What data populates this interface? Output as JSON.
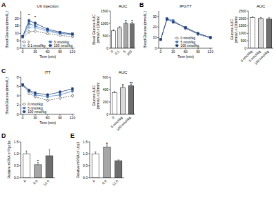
{
  "chart_data": [
    {
      "type": "line",
      "panel": "A",
      "title": "UII injection",
      "xlabel": "Time (min)",
      "ylabel": "Blood Glucose (mmol/L)",
      "x": [
        0,
        15,
        30,
        60,
        90,
        120
      ],
      "xlim": [
        -5,
        125
      ],
      "xticks": [
        0,
        30,
        60,
        90,
        120
      ],
      "ylim": [
        0,
        25
      ],
      "yticks": [
        0,
        5,
        10,
        15,
        20
      ],
      "legend": "lower left",
      "series": [
        {
          "name": "0",
          "color": "#555555",
          "marker": "open_circle",
          "line_style": "dashed",
          "values": [
            7.2,
            11.0,
            11.5,
            9.8,
            8.6,
            7.8
          ],
          "errors": [
            0.4,
            0.8,
            0.8,
            0.6,
            0.5,
            0.4
          ]
        },
        {
          "name": "0.1 nmol/kg",
          "color": "#8fb4dc",
          "marker": "circle",
          "line_style": "solid",
          "values": [
            7.5,
            14.0,
            13.8,
            11.2,
            9.8,
            8.8
          ],
          "errors": [
            0.4,
            0.9,
            0.9,
            0.7,
            0.6,
            0.5
          ]
        },
        {
          "name": "5 nmol/kg",
          "color": "#4a78b5",
          "marker": "square",
          "line_style": "solid",
          "values": [
            7.8,
            16.5,
            15.0,
            12.0,
            10.2,
            9.2
          ],
          "errors": [
            0.4,
            1.0,
            0.9,
            0.7,
            0.6,
            0.5
          ]
        },
        {
          "name": "100 nmol/kg",
          "color": "#1f3f78",
          "marker": "square",
          "line_style": "solid",
          "values": [
            8.0,
            18.5,
            16.8,
            12.8,
            10.8,
            9.6
          ],
          "errors": [
            0.4,
            1.0,
            1.0,
            0.8,
            0.6,
            0.5
          ]
        }
      ],
      "annotations": [
        {
          "x": 15,
          "y": 21.5,
          "text": "*"
        },
        {
          "x": 30,
          "y": 20,
          "text": "*"
        }
      ]
    },
    {
      "type": "bar",
      "title": "AUC",
      "ylabel": "Blood Glucose AUC (mmol/L×120min)",
      "categories": [
        "0",
        "0.1",
        "5",
        "100"
      ],
      "values": [
        700,
        820,
        1000,
        980
      ],
      "errors": [
        40,
        50,
        50,
        60
      ],
      "colors": [
        "#ffffff",
        "#d9d9d9",
        "#a6a6a6",
        "#6e6e6e"
      ],
      "significance": [
        null,
        null,
        "*",
        "*"
      ],
      "ylim": [
        0,
        1500
      ],
      "yticks": [
        0,
        500,
        1000,
        1500
      ]
    },
    {
      "type": "line",
      "panel": "B",
      "title": "IPGTT",
      "xlabel": "Time (min)",
      "ylabel": "Blood Glucose (mmol/L)",
      "x": [
        0,
        15,
        30,
        60,
        90,
        120
      ],
      "xlim": [
        -5,
        125
      ],
      "xticks": [
        0,
        30,
        60,
        90,
        120
      ],
      "ylim": [
        0,
        35
      ],
      "yticks": [
        0,
        10,
        20,
        30
      ],
      "legend": "lower center",
      "series": [
        {
          "name": "0 nmol/kg",
          "color": "#555555",
          "marker": "open_circle",
          "line_style": "dashed",
          "values": [
            8.2,
            27.0,
            25.5,
            18.5,
            13.0,
            9.5
          ],
          "errors": [
            0.5,
            1.0,
            1.0,
            0.9,
            0.8,
            0.6
          ]
        },
        {
          "name": "5 nmol/kg",
          "color": "#4a78b5",
          "marker": "square",
          "line_style": "solid",
          "values": [
            8.0,
            28.0,
            26.0,
            19.0,
            13.5,
            9.8
          ],
          "errors": [
            0.5,
            1.0,
            1.0,
            0.9,
            0.8,
            0.6
          ]
        },
        {
          "name": "100 nmol/kg",
          "color": "#1f3f78",
          "marker": "square",
          "line_style": "solid",
          "values": [
            8.4,
            27.5,
            24.5,
            19.5,
            14.0,
            10.2
          ],
          "errors": [
            0.5,
            1.0,
            1.0,
            0.9,
            0.8,
            0.6
          ]
        }
      ]
    },
    {
      "type": "bar",
      "title": "AUC",
      "ylabel": "Glucose AUC (mmol/L×120min)",
      "categories": [
        "0 nmol/kg",
        "5 nmol/kg",
        "100 nmol/kg"
      ],
      "values": [
        2050,
        2000,
        1960
      ],
      "errors": [
        80,
        70,
        90
      ],
      "colors": [
        "#ffffff",
        "#d9d9d9",
        "#6e6e6e"
      ],
      "ylim": [
        0,
        2500
      ],
      "yticks": [
        0,
        500,
        1000,
        1500,
        2000,
        2500
      ]
    },
    {
      "type": "line",
      "panel": "C",
      "title": "ITT",
      "xlabel": "Time (min)",
      "ylabel": "Blood Glucose (mmol/L)",
      "x": [
        0,
        15,
        30,
        60,
        90,
        120
      ],
      "xlim": [
        -5,
        125
      ],
      "xticks": [
        0,
        30,
        60,
        90,
        120
      ],
      "ylim": [
        0,
        8
      ],
      "yticks": [
        0,
        2,
        4,
        6,
        8
      ],
      "legend": "lower left",
      "series": [
        {
          "name": "0 nmol/kg",
          "color": "#555555",
          "marker": "open_circle",
          "line_style": "dashed",
          "values": [
            6.2,
            4.5,
            3.8,
            3.0,
            3.5,
            4.0
          ],
          "errors": [
            0.2,
            0.25,
            0.25,
            0.2,
            0.25,
            0.3
          ]
        },
        {
          "name": "5 nmol/kg",
          "color": "#4a78b5",
          "marker": "square",
          "line_style": "solid",
          "values": [
            6.3,
            5.0,
            4.2,
            3.8,
            4.2,
            5.0
          ],
          "errors": [
            0.2,
            0.25,
            0.25,
            0.25,
            0.3,
            0.3
          ]
        },
        {
          "name": "100 nmol/kg",
          "color": "#1f3f78",
          "marker": "square",
          "line_style": "solid",
          "values": [
            6.4,
            5.2,
            4.6,
            4.2,
            4.8,
            5.5
          ],
          "errors": [
            0.2,
            0.25,
            0.3,
            0.3,
            0.3,
            0.3
          ]
        }
      ]
    },
    {
      "type": "bar",
      "title": "AUC",
      "ylabel": "Glucose AUC (mmol/L×120min)",
      "categories": [
        "0",
        "5 nmol/kg",
        "100 nmol/kg"
      ],
      "values": [
        350,
        430,
        460
      ],
      "errors": [
        20,
        25,
        25
      ],
      "colors": [
        "#ffffff",
        "#d9d9d9",
        "#6e6e6e"
      ],
      "significance": [
        null,
        "*",
        "**"
      ],
      "ylim": [
        0,
        600
      ],
      "yticks": [
        0,
        200,
        400,
        600
      ]
    },
    {
      "type": "bar",
      "panel": "D",
      "ylabel": "Relative mRNA of Pgc1α",
      "categories": [
        "0",
        "6 h",
        "12 h"
      ],
      "values": [
        1.0,
        0.55,
        0.92
      ],
      "errors": [
        0.12,
        0.1,
        0.25
      ],
      "colors": [
        "#ffffff",
        "#a6a6a6",
        "#6e6e6e"
      ],
      "significance": [
        null,
        "*",
        null
      ],
      "ylim": [
        0,
        1.5
      ],
      "yticks": [
        {
          "value": 0,
          "label": "0.0"
        },
        0.5,
        {
          "value": 1,
          "label": "1.0"
        },
        1.5
      ]
    },
    {
      "type": "bar",
      "panel": "E",
      "ylabel": "Relative mRNA of Ucp3",
      "categories": [
        "0",
        "6 h",
        "12 h"
      ],
      "values": [
        1.0,
        1.28,
        0.7
      ],
      "errors": [
        0.08,
        0.1,
        0.05
      ],
      "colors": [
        "#ffffff",
        "#a6a6a6",
        "#6e6e6e"
      ],
      "significance": [
        null,
        "*",
        null
      ],
      "ylim": [
        0,
        1.5
      ],
      "yticks": [
        {
          "value": 0,
          "label": "0.0"
        },
        0.5,
        {
          "value": 1,
          "label": "1.0"
        },
        1.5
      ]
    }
  ]
}
